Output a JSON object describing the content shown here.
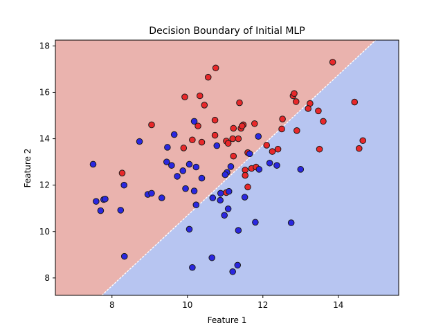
{
  "chart_data": {
    "type": "scatter",
    "title": "Decision Boundary of Initial MLP",
    "xlabel": "Feature 1",
    "ylabel": "Feature 2",
    "xlim": [
      6.5,
      15.6
    ],
    "ylim": [
      7.25,
      18.25
    ],
    "x_ticks": [
      8,
      10,
      12,
      14
    ],
    "y_ticks": [
      8,
      10,
      12,
      14,
      16,
      18
    ],
    "x_tick_labels": [
      "8",
      "10",
      "12",
      "14"
    ],
    "y_tick_labels": [
      "8",
      "10",
      "12",
      "14",
      "16",
      "18"
    ],
    "grid": false,
    "region_colors": {
      "red": "#eab3ae",
      "blue": "#b7c5f1",
      "boundary": "#ffffff"
    },
    "point_colors": {
      "red": "#e8282a",
      "blue": "#2a27e0",
      "edge": "#1a1a1a"
    },
    "decision_boundary": [
      [
        7.73,
        7.25
      ],
      [
        14.99,
        18.25
      ]
    ],
    "series": [
      {
        "class": "red",
        "points": [
          [
            13.85,
            17.3
          ],
          [
            10.75,
            17.05
          ],
          [
            10.55,
            16.65
          ],
          [
            9.93,
            15.8
          ],
          [
            10.33,
            15.85
          ],
          [
            12.8,
            15.85
          ],
          [
            12.83,
            15.95
          ],
          [
            11.38,
            15.55
          ],
          [
            12.88,
            15.6
          ],
          [
            13.25,
            15.52
          ],
          [
            10.45,
            15.45
          ],
          [
            13.2,
            15.3
          ],
          [
            13.47,
            15.2
          ],
          [
            12.52,
            14.85
          ],
          [
            10.73,
            14.8
          ],
          [
            11.78,
            14.65
          ],
          [
            9.05,
            14.6
          ],
          [
            11.48,
            14.6
          ],
          [
            10.28,
            14.55
          ],
          [
            11.22,
            14.45
          ],
          [
            11.42,
            14.45
          ],
          [
            11.45,
            14.55
          ],
          [
            13.6,
            14.75
          ],
          [
            12.5,
            14.42
          ],
          [
            12.9,
            14.35
          ],
          [
            10.73,
            14.15
          ],
          [
            10.13,
            13.95
          ],
          [
            10.38,
            13.85
          ],
          [
            11.03,
            13.9
          ],
          [
            11.08,
            13.8
          ],
          [
            11.2,
            14.0
          ],
          [
            11.35,
            14.0
          ],
          [
            12.1,
            13.72
          ],
          [
            9.9,
            13.6
          ],
          [
            11.6,
            13.4
          ],
          [
            12.25,
            13.45
          ],
          [
            12.4,
            13.55
          ],
          [
            11.22,
            13.25
          ],
          [
            13.5,
            13.55
          ],
          [
            14.55,
            13.58
          ],
          [
            14.65,
            13.92
          ],
          [
            14.43,
            15.58
          ],
          [
            11.7,
            12.72
          ],
          [
            11.82,
            12.78
          ],
          [
            11.53,
            12.65
          ],
          [
            11.53,
            12.42
          ],
          [
            11.6,
            11.92
          ],
          [
            11.03,
            11.68
          ],
          [
            8.27,
            12.52
          ]
        ]
      },
      {
        "class": "blue",
        "points": [
          [
            8.73,
            13.88
          ],
          [
            9.65,
            14.18
          ],
          [
            10.18,
            14.75
          ],
          [
            9.47,
            13.63
          ],
          [
            10.78,
            13.7
          ],
          [
            11.88,
            14.1
          ],
          [
            11.65,
            13.35
          ],
          [
            9.45,
            13.0
          ],
          [
            9.58,
            12.85
          ],
          [
            9.73,
            12.38
          ],
          [
            9.88,
            12.62
          ],
          [
            10.05,
            12.9
          ],
          [
            10.23,
            12.78
          ],
          [
            10.38,
            12.3
          ],
          [
            11.15,
            12.8
          ],
          [
            11.05,
            12.55
          ],
          [
            11.0,
            12.45
          ],
          [
            12.18,
            12.95
          ],
          [
            12.37,
            12.85
          ],
          [
            11.9,
            12.68
          ],
          [
            7.5,
            12.9
          ],
          [
            8.32,
            12.0
          ],
          [
            7.58,
            11.3
          ],
          [
            7.78,
            11.38
          ],
          [
            7.82,
            11.4
          ],
          [
            7.7,
            10.9
          ],
          [
            8.95,
            11.6
          ],
          [
            9.05,
            11.65
          ],
          [
            9.32,
            11.45
          ],
          [
            9.95,
            11.85
          ],
          [
            10.18,
            11.75
          ],
          [
            10.23,
            11.15
          ],
          [
            10.67,
            11.45
          ],
          [
            10.88,
            11.65
          ],
          [
            10.87,
            11.35
          ],
          [
            11.1,
            11.73
          ],
          [
            11.08,
            10.98
          ],
          [
            11.52,
            11.48
          ],
          [
            10.98,
            10.7
          ],
          [
            11.35,
            10.05
          ],
          [
            11.8,
            10.4
          ],
          [
            12.75,
            10.38
          ],
          [
            13.0,
            12.68
          ],
          [
            8.23,
            10.92
          ],
          [
            10.05,
            10.1
          ],
          [
            8.33,
            8.93
          ],
          [
            10.65,
            8.87
          ],
          [
            10.13,
            8.45
          ],
          [
            11.33,
            8.55
          ],
          [
            11.2,
            8.27
          ]
        ]
      }
    ]
  }
}
